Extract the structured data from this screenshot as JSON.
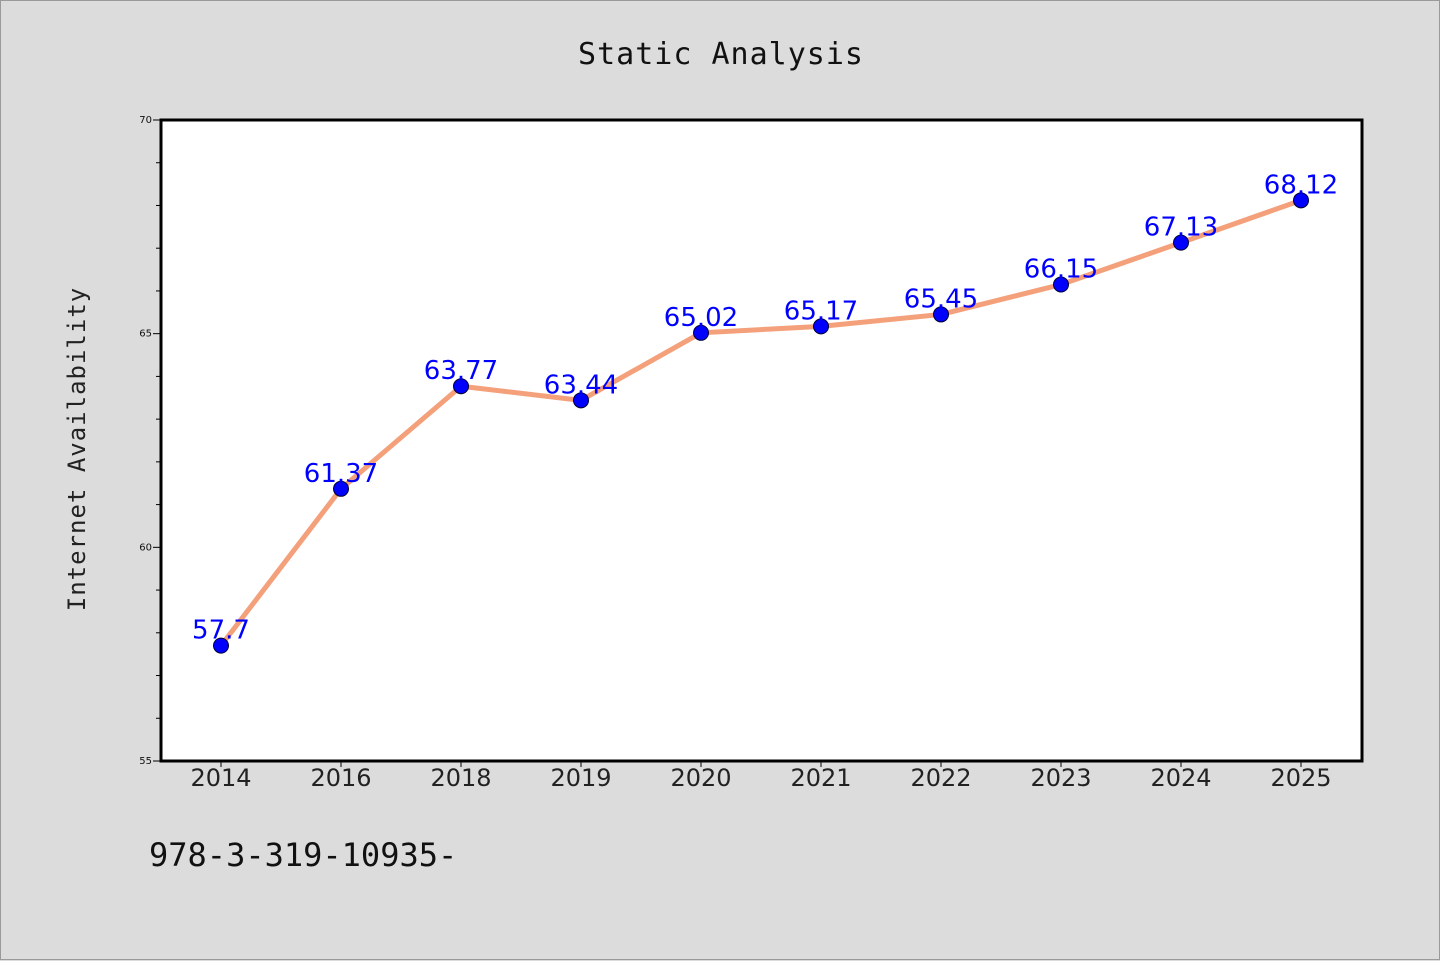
{
  "chart_data": {
    "type": "line",
    "title": "Static Analysis",
    "xlabel": "",
    "ylabel": "Internet Availability",
    "categories": [
      "2014",
      "2016",
      "2018",
      "2019",
      "2020",
      "2021",
      "2022",
      "2023",
      "2024",
      "2025"
    ],
    "values": [
      57.7,
      61.37,
      63.77,
      63.44,
      65.02,
      65.17,
      65.45,
      66.15,
      67.13,
      68.12
    ],
    "data_labels": [
      "57.7",
      "61.37",
      "63.77",
      "63.44",
      "65.02",
      "65.17",
      "65.45",
      "66.15",
      "67.13",
      "68.12"
    ],
    "ylim": [
      55,
      70
    ],
    "yticks": [
      "55",
      "60",
      "65",
      "70"
    ],
    "grid": false,
    "line_color": "#f4a07a",
    "marker_color": "#0000ff",
    "label_color": "#0000ff",
    "background": "#dcdcdc",
    "plot_background": "#ffffff"
  },
  "footer_text": "978-3-319-10935-"
}
